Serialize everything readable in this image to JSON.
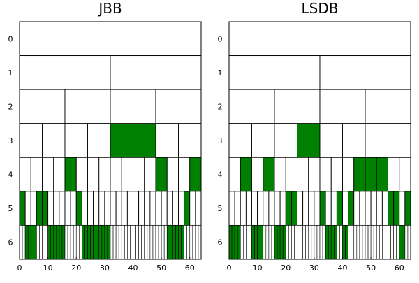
{
  "chart_data": [
    {
      "type": "heatmap",
      "title": "JBB",
      "xlim": [
        0,
        64
      ],
      "xticks": [
        0,
        10,
        20,
        30,
        40,
        50,
        60
      ],
      "levels": [
        0,
        1,
        2,
        3,
        4,
        5,
        6
      ],
      "fill_color": "#008000",
      "cell_color": "#ffffff",
      "line_color": "#000000",
      "highlighted": {
        "3": [
          4,
          5
        ],
        "4": [
          4,
          12,
          15
        ],
        "5": [
          0,
          3,
          4,
          10,
          29
        ],
        "6": [
          2,
          3,
          4,
          5,
          10,
          11,
          12,
          13,
          14,
          15,
          22,
          23,
          24,
          25,
          26,
          27,
          28,
          29,
          30,
          31,
          52,
          53,
          54,
          55,
          56,
          57
        ]
      }
    },
    {
      "type": "heatmap",
      "title": "LSDB",
      "xlim": [
        0,
        64
      ],
      "xticks": [
        0,
        10,
        20,
        30,
        40,
        50,
        60
      ],
      "levels": [
        0,
        1,
        2,
        3,
        4,
        5,
        6
      ],
      "fill_color": "#008000",
      "cell_color": "#ffffff",
      "line_color": "#000000",
      "highlighted": {
        "3": [
          3
        ],
        "4": [
          1,
          3,
          11,
          12,
          13
        ],
        "5": [
          10,
          11,
          16,
          19,
          21,
          28,
          29,
          31
        ],
        "6": [
          0,
          1,
          2,
          3,
          8,
          9,
          10,
          11,
          16,
          17,
          18,
          19,
          34,
          35,
          36,
          37,
          40,
          41,
          60,
          61
        ]
      }
    }
  ]
}
